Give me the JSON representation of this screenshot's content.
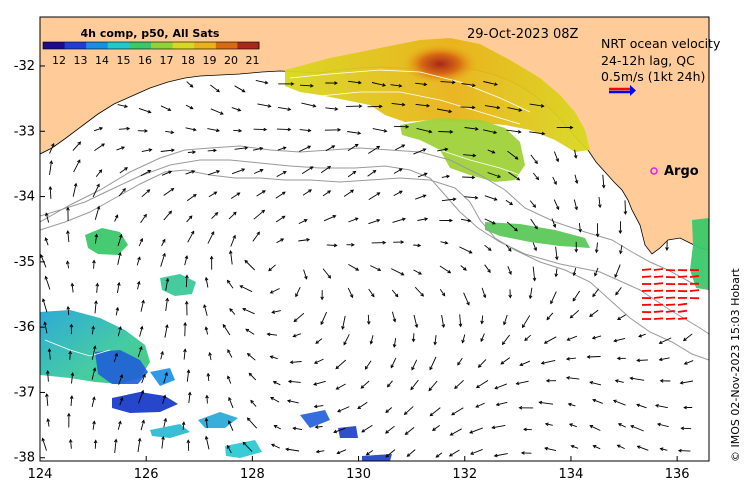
{
  "map": {
    "date_label": "29-Oct-2023 08Z",
    "velocity_title": "NRT ocean velocity",
    "velocity_subtitle": "24-12h lag, QC",
    "scale_label": "0.5m/s (1kt 24h)",
    "credit": "© IMOS 02-Nov-2023 15:03 Hobart",
    "argo_label": "Argo",
    "x_ticks": [
      "124",
      "126",
      "128",
      "130",
      "132",
      "134",
      "136"
    ],
    "y_ticks": [
      "-32",
      "-33",
      "-34",
      "-35",
      "-36",
      "-37",
      "-38"
    ],
    "lon_range": [
      124,
      136.6
    ],
    "lat_range": [
      -31.25,
      -38.05
    ]
  },
  "colorbar": {
    "title": "4h comp, p50, All Sats",
    "labels": [
      "12",
      "13",
      "14",
      "15",
      "16",
      "17",
      "18",
      "19",
      "20",
      "21"
    ],
    "colors": [
      "#1a0c8a",
      "#1f3fd0",
      "#1a8ee6",
      "#22c7d0",
      "#3cc86a",
      "#8fd23a",
      "#d8d820",
      "#e9b218",
      "#d86a14",
      "#a8281a"
    ]
  },
  "colors": {
    "land": "#ffcc99",
    "ocean": "#ffffff",
    "isobath": "#9a9a9a",
    "argo": "#e020e0",
    "arrow": "#000000",
    "scale_arrow_red": "#ff0000",
    "scale_arrow_blue": "#0000ff"
  }
}
